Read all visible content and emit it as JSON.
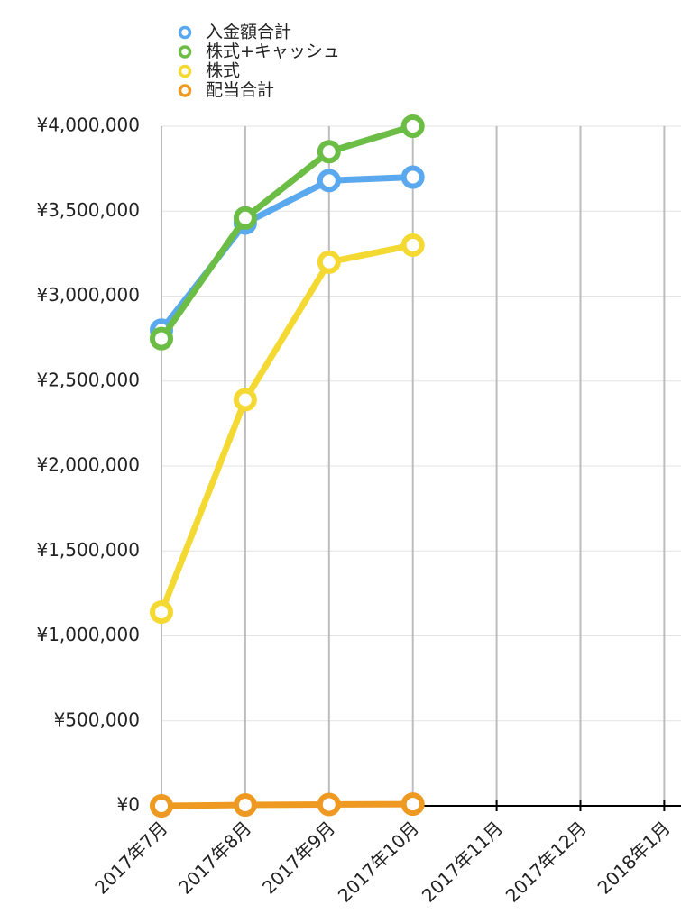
{
  "chart_data": {
    "type": "line",
    "categories": [
      "2017年7月",
      "2017年8月",
      "2017年9月",
      "2017年10月",
      "2017年11月",
      "2017年12月",
      "2018年1月"
    ],
    "series": [
      {
        "name": "入金額合計",
        "color": "#5aa9ee",
        "values": [
          2800000,
          3430000,
          3680000,
          3700000,
          null,
          null,
          null
        ]
      },
      {
        "name": "株式+キャッシュ",
        "color": "#6cbd45",
        "values": [
          2750000,
          3460000,
          3850000,
          4000000,
          null,
          null,
          null
        ]
      },
      {
        "name": "株式",
        "color": "#f5d933",
        "values": [
          1140000,
          2390000,
          3200000,
          3300000,
          null,
          null,
          null
        ]
      },
      {
        "name": "配当合計",
        "color": "#ee9a22",
        "values": [
          0,
          5000,
          8000,
          10000,
          null,
          null,
          null
        ]
      }
    ],
    "ylim": [
      0,
      4000000
    ],
    "yticks": [
      {
        "value": 0,
        "label": "¥0"
      },
      {
        "value": 500000,
        "label": "¥500,000"
      },
      {
        "value": 1000000,
        "label": "¥1,000,000"
      },
      {
        "value": 1500000,
        "label": "¥1,500,000"
      },
      {
        "value": 2000000,
        "label": "¥2,000,000"
      },
      {
        "value": 2500000,
        "label": "¥2,500,000"
      },
      {
        "value": 3000000,
        "label": "¥3,000,000"
      },
      {
        "value": 3500000,
        "label": "¥3,500,000"
      },
      {
        "value": 4000000,
        "label": "¥4,000,000"
      }
    ],
    "grid": true,
    "legend": "top-left"
  }
}
